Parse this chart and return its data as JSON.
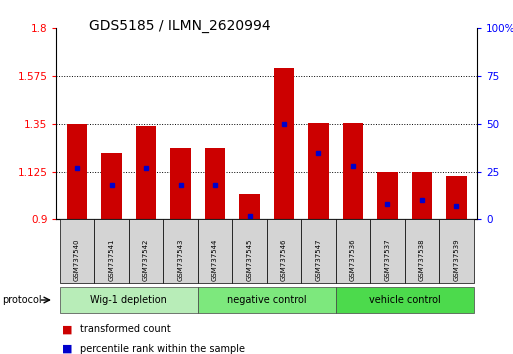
{
  "title": "GDS5185 / ILMN_2620994",
  "samples": [
    "GSM737540",
    "GSM737541",
    "GSM737542",
    "GSM737543",
    "GSM737544",
    "GSM737545",
    "GSM737546",
    "GSM737547",
    "GSM737536",
    "GSM737537",
    "GSM737538",
    "GSM737539"
  ],
  "transformed_counts": [
    1.35,
    1.215,
    1.34,
    1.235,
    1.235,
    1.02,
    1.615,
    1.355,
    1.355,
    1.125,
    1.125,
    1.105
  ],
  "percentile_ranks": [
    27,
    18,
    27,
    18,
    18,
    2,
    50,
    35,
    28,
    8,
    10,
    7
  ],
  "groups": [
    {
      "label": "Wig-1 depletion",
      "start": 0,
      "end": 3,
      "color": "#b8edb8"
    },
    {
      "label": "negative control",
      "start": 4,
      "end": 7,
      "color": "#7de87d"
    },
    {
      "label": "vehicle control",
      "start": 8,
      "end": 11,
      "color": "#4cda4c"
    }
  ],
  "ylim_left": [
    0.9,
    1.8
  ],
  "ylim_right": [
    0,
    100
  ],
  "yticks_left": [
    0.9,
    1.125,
    1.35,
    1.575,
    1.8
  ],
  "yticks_right": [
    0,
    25,
    50,
    75,
    100
  ],
  "bar_color": "#cc0000",
  "dot_color": "#0000cc",
  "bar_width": 0.6,
  "background_color": "#ffffff"
}
